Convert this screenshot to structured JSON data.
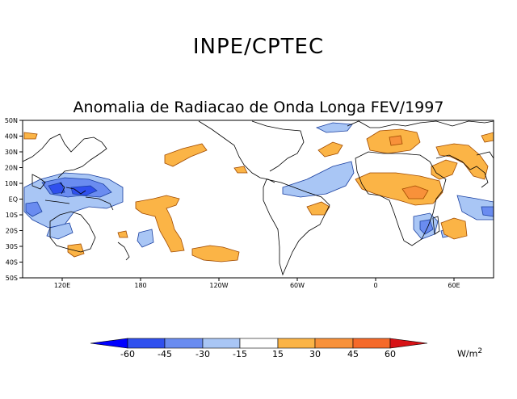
{
  "header": {
    "institution": "INPE/CPTEC",
    "map_title": "Anomalia de Radiacao de Onda Longa FEV/1997"
  },
  "map": {
    "lat_labels": [
      "50N",
      "40N",
      "30N",
      "20N",
      "10N",
      "EQ",
      "10S",
      "20S",
      "30S",
      "40S",
      "50S"
    ],
    "lon_labels": [
      "120E",
      "180",
      "120W",
      "60W",
      "0",
      "60E"
    ],
    "anomaly_regions": [
      {
        "region": "Maritime Continent / western Pacific",
        "category": "-45"
      },
      {
        "region": "Indonesia / Philippines",
        "category": "-30"
      },
      {
        "region": "Tropical Atlantic / Gulf of Guinea",
        "category": "-15"
      },
      {
        "region": "Southern Africa",
        "category": "-30"
      },
      {
        "region": "Western Indian Ocean",
        "category": "-15"
      },
      {
        "region": "Central Pacific",
        "category": "15"
      },
      {
        "region": "Equatorial Africa / Congo",
        "category": "30"
      },
      {
        "region": "Mediterranean / North Africa",
        "category": "15"
      },
      {
        "region": "Amazon / Northeast Brazil",
        "category": "15"
      }
    ]
  },
  "colorbar": {
    "labels": [
      "-60",
      "-45",
      "-30",
      "-15",
      "15",
      "30",
      "45",
      "60"
    ],
    "colors": [
      "#0000ff",
      "#3050ee",
      "#6a8cf0",
      "#a9c6f5",
      "#ffffff",
      "#fbb446",
      "#f8913a",
      "#f56a2a",
      "#f33a1e",
      "#d71216"
    ],
    "units_base": "W/m",
    "units_exp": "2"
  }
}
